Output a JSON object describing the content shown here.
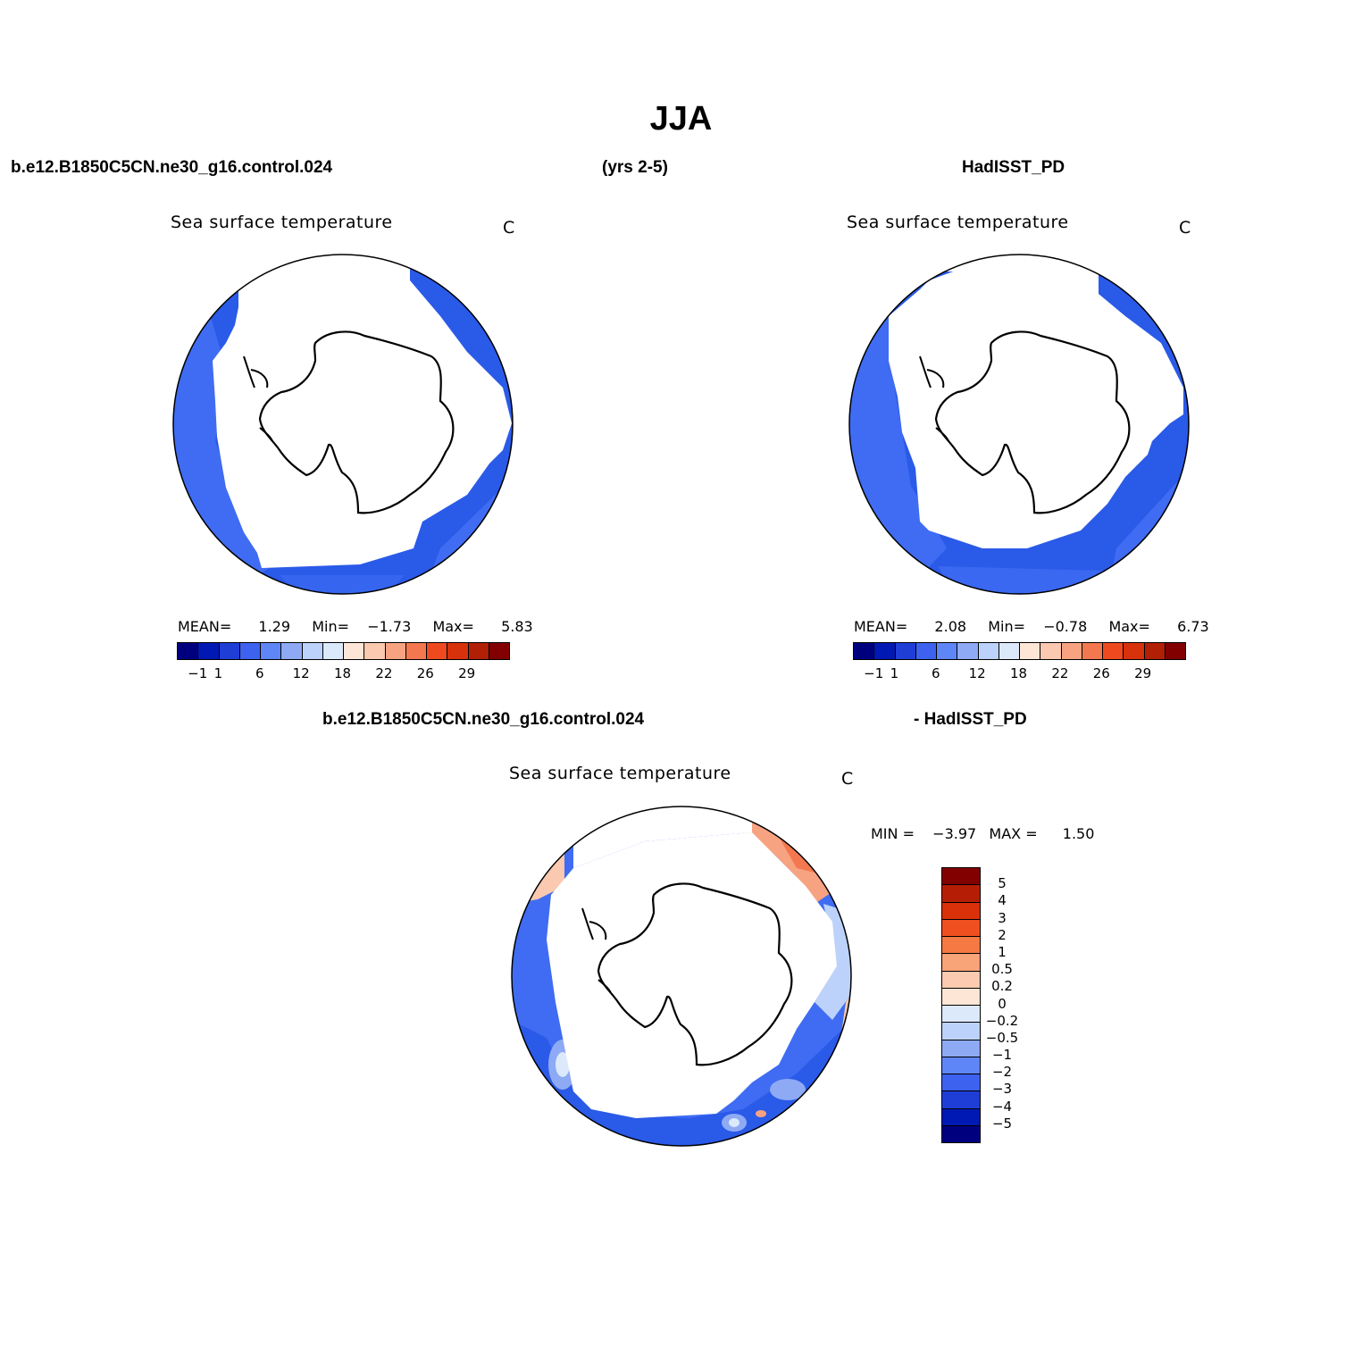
{
  "title": "JJA",
  "headers": {
    "case": "b.e12.B1850C5CN.ne30_g16.control.024",
    "years": "(yrs 2-5)",
    "obs": "HadISST_PD",
    "diff_case": "b.e12.B1850C5CN.ne30_g16.control.024",
    "diff_obs": "- HadISST_PD"
  },
  "panels": {
    "model": {
      "title": "Sea surface temperature",
      "unit": "C",
      "mean_label": "MEAN=",
      "mean": "1.29",
      "min_label": "Min=",
      "min": "−1.73",
      "max_label": "Max=",
      "max": "5.83"
    },
    "obs": {
      "title": "Sea surface temperature",
      "unit": "C",
      "mean_label": "MEAN=",
      "mean": "2.08",
      "min_label": "Min=",
      "min": "−0.78",
      "max_label": "Max=",
      "max": "6.73"
    },
    "diff": {
      "title": "Sea surface temperature",
      "unit": "C",
      "min_label": "MIN =",
      "min": "−3.97",
      "max_label": "MAX =",
      "max": "1.50"
    }
  },
  "colorbar_abs": {
    "colors": [
      "#00007f",
      "#0018b4",
      "#1f3ed6",
      "#3d62ef",
      "#5f86f7",
      "#8eaaf5",
      "#bcd2fa",
      "#dce9fb",
      "#fde6d6",
      "#fbc9af",
      "#f7a382",
      "#f4784f",
      "#ef4a1f",
      "#d7320b",
      "#b11f04",
      "#820000"
    ],
    "labels": [
      "−1",
      "1",
      "6",
      "12",
      "18",
      "22",
      "26",
      "29"
    ]
  },
  "colorbar_diff": {
    "colors_top_to_bottom": [
      "#820000",
      "#b51e04",
      "#da310a",
      "#f0501f",
      "#f57943",
      "#f9a379",
      "#fbcab0",
      "#fde6d6",
      "#dce9fb",
      "#bcd2fa",
      "#8eaaf5",
      "#5f86f7",
      "#3d62ef",
      "#1f3ed6",
      "#0018b4",
      "#00007f"
    ],
    "labels_top_to_bottom": [
      "5",
      "4",
      "3",
      "2",
      "1",
      "0.5",
      "0.2",
      "0",
      "−0.2",
      "−0.5",
      "−1",
      "−2",
      "−3",
      "−4",
      "−5"
    ]
  }
}
